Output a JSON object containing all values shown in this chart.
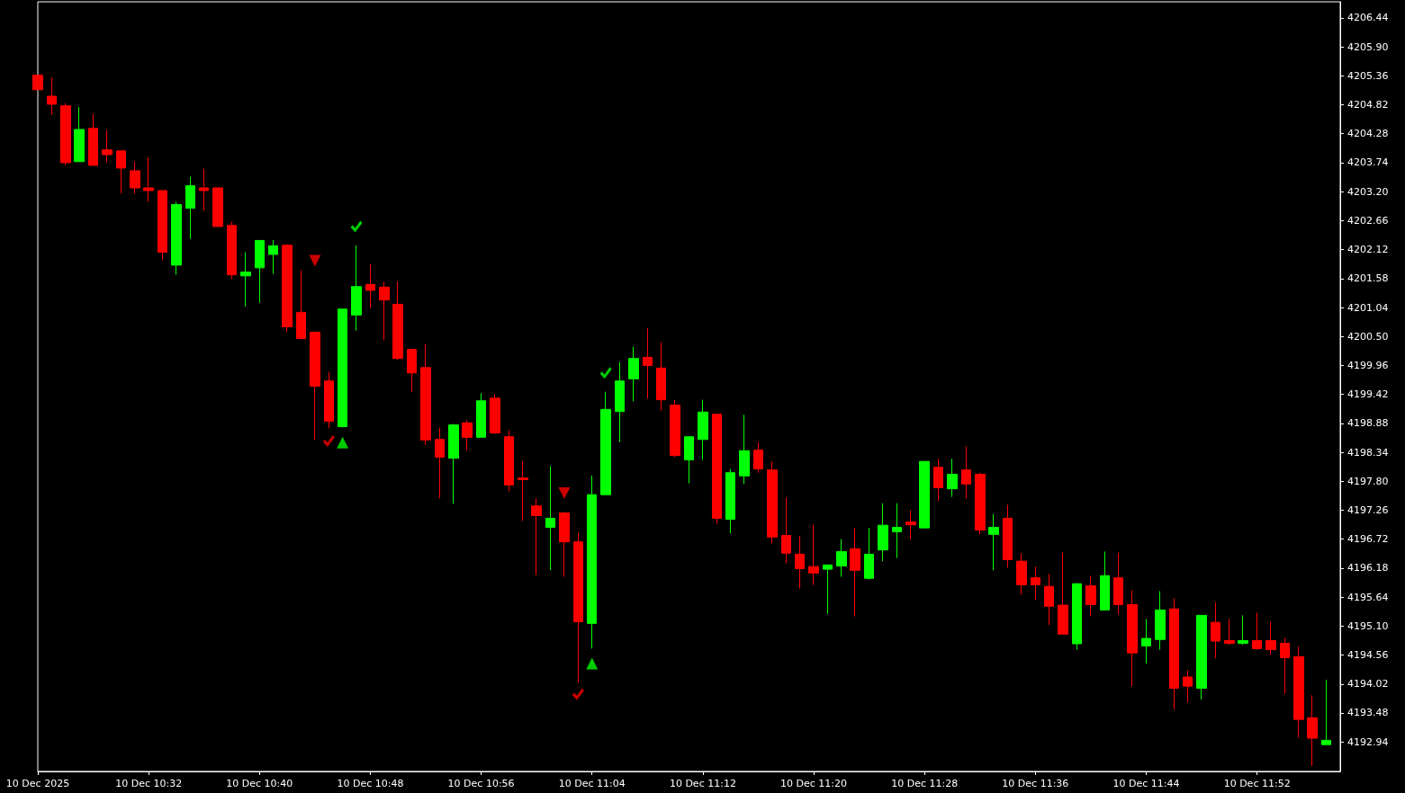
{
  "chart_data": {
    "type": "candlestick",
    "x": [
      "2025-12-10T10:24",
      "2025-12-10T10:25",
      "2025-12-10T10:26",
      "2025-12-10T10:27",
      "2025-12-10T10:28",
      "2025-12-10T10:29",
      "2025-12-10T10:30",
      "2025-12-10T10:31",
      "2025-12-10T10:32",
      "2025-12-10T10:33",
      "2025-12-10T10:34",
      "2025-12-10T10:35",
      "2025-12-10T10:36",
      "2025-12-10T10:37",
      "2025-12-10T10:38",
      "2025-12-10T10:39",
      "2025-12-10T10:40",
      "2025-12-10T10:41",
      "2025-12-10T10:42",
      "2025-12-10T10:43",
      "2025-12-10T10:44",
      "2025-12-10T10:45",
      "2025-12-10T10:46",
      "2025-12-10T10:47",
      "2025-12-10T10:48",
      "2025-12-10T10:49",
      "2025-12-10T10:50",
      "2025-12-10T10:51",
      "2025-12-10T10:52",
      "2025-12-10T10:53",
      "2025-12-10T10:54",
      "2025-12-10T10:55",
      "2025-12-10T10:56",
      "2025-12-10T10:57",
      "2025-12-10T10:58",
      "2025-12-10T10:59",
      "2025-12-10T11:00",
      "2025-12-10T11:01",
      "2025-12-10T11:02",
      "2025-12-10T11:03",
      "2025-12-10T11:04",
      "2025-12-10T11:05",
      "2025-12-10T11:06",
      "2025-12-10T11:07",
      "2025-12-10T11:08",
      "2025-12-10T11:09",
      "2025-12-10T11:10",
      "2025-12-10T11:11",
      "2025-12-10T11:12",
      "2025-12-10T11:13",
      "2025-12-10T11:14",
      "2025-12-10T11:15",
      "2025-12-10T11:16",
      "2025-12-10T11:17",
      "2025-12-10T11:18",
      "2025-12-10T11:19",
      "2025-12-10T11:20",
      "2025-12-10T11:21",
      "2025-12-10T11:22",
      "2025-12-10T11:23",
      "2025-12-10T11:24",
      "2025-12-10T11:25",
      "2025-12-10T11:26",
      "2025-12-10T11:27",
      "2025-12-10T11:28",
      "2025-12-10T11:29",
      "2025-12-10T11:30",
      "2025-12-10T11:31",
      "2025-12-10T11:32",
      "2025-12-10T11:33",
      "2025-12-10T11:34",
      "2025-12-10T11:35",
      "2025-12-10T11:36",
      "2025-12-10T11:37",
      "2025-12-10T11:38",
      "2025-12-10T11:39",
      "2025-12-10T11:40",
      "2025-12-10T11:41",
      "2025-12-10T11:42",
      "2025-12-10T11:43",
      "2025-12-10T11:44",
      "2025-12-10T11:45",
      "2025-12-10T11:46",
      "2025-12-10T11:47",
      "2025-12-10T11:48",
      "2025-12-10T11:49",
      "2025-12-10T11:50",
      "2025-12-10T11:51",
      "2025-12-10T11:52",
      "2025-12-10T11:53",
      "2025-12-10T11:54",
      "2025-12-10T11:55",
      "2025-12-10T11:56",
      "2025-12-10T11:57"
    ],
    "ohlc": [
      [
        4205.37,
        4205.37,
        4205.1,
        4205.1
      ],
      [
        4204.98,
        4205.33,
        4204.63,
        4204.83
      ],
      [
        4204.8,
        4204.85,
        4203.69,
        4203.74
      ],
      [
        4203.76,
        4204.78,
        4203.76,
        4204.36
      ],
      [
        4204.38,
        4204.65,
        4203.69,
        4203.69
      ],
      [
        4203.98,
        4204.35,
        4203.74,
        4203.89
      ],
      [
        4203.96,
        4203.96,
        4203.17,
        4203.64
      ],
      [
        4203.59,
        4203.76,
        4203.16,
        4203.27
      ],
      [
        4203.27,
        4203.84,
        4203.01,
        4203.22
      ],
      [
        4203.22,
        4203.22,
        4201.92,
        4202.07
      ],
      [
        4201.83,
        4203.01,
        4201.65,
        4202.96
      ],
      [
        4202.89,
        4203.48,
        4202.32,
        4203.31
      ],
      [
        4203.27,
        4203.63,
        4202.84,
        4203.22
      ],
      [
        4203.27,
        4203.27,
        4202.55,
        4202.55
      ],
      [
        4202.57,
        4202.64,
        4201.57,
        4201.65
      ],
      [
        4201.63,
        4202.07,
        4201.06,
        4201.7
      ],
      [
        4201.78,
        4202.29,
        4201.13,
        4202.29
      ],
      [
        4202.03,
        4202.3,
        4201.67,
        4202.19
      ],
      [
        4202.2,
        4202.22,
        4200.58,
        4200.68
      ],
      [
        4200.95,
        4201.73,
        4200.46,
        4200.46
      ],
      [
        4200.58,
        4200.58,
        4198.57,
        4199.57
      ],
      [
        4199.67,
        4199.84,
        4198.79,
        4198.92
      ],
      [
        4198.82,
        4201.01,
        4198.8,
        4201.01
      ],
      [
        4200.9,
        4202.2,
        4200.61,
        4201.43
      ],
      [
        4201.47,
        4201.85,
        4201.03,
        4201.36
      ],
      [
        4201.42,
        4201.52,
        4200.43,
        4201.18
      ],
      [
        4201.1,
        4201.53,
        4200.06,
        4200.09
      ],
      [
        4200.26,
        4200.26,
        4199.46,
        4199.82
      ],
      [
        4199.92,
        4200.36,
        4198.48,
        4198.57
      ],
      [
        4198.58,
        4198.8,
        4197.48,
        4198.25
      ],
      [
        4198.23,
        4198.87,
        4197.38,
        4198.85
      ],
      [
        4198.89,
        4198.94,
        4198.37,
        4198.62
      ],
      [
        4198.62,
        4199.44,
        4198.62,
        4199.3
      ],
      [
        4199.35,
        4199.42,
        4198.68,
        4198.7
      ],
      [
        4198.63,
        4198.75,
        4197.61,
        4197.73
      ],
      [
        4197.86,
        4198.17,
        4197.06,
        4197.83
      ],
      [
        4197.34,
        4197.48,
        4196.05,
        4197.16
      ],
      [
        4196.94,
        4198.08,
        4196.14,
        4197.11
      ],
      [
        4197.21,
        4197.23,
        4196.02,
        4196.67
      ],
      [
        4196.67,
        4196.84,
        4194.04,
        4195.18
      ],
      [
        4195.15,
        4197.91,
        4194.68,
        4197.55
      ],
      [
        4197.55,
        4199.47,
        4197.55,
        4199.14
      ],
      [
        4199.1,
        4200.02,
        4198.53,
        4199.67
      ],
      [
        4199.71,
        4200.31,
        4199.29,
        4200.09
      ],
      [
        4200.11,
        4200.66,
        4199.34,
        4199.96
      ],
      [
        4199.91,
        4200.39,
        4199.12,
        4199.32
      ],
      [
        4199.22,
        4199.32,
        4198.25,
        4198.28
      ],
      [
        4198.2,
        4198.63,
        4197.76,
        4198.63
      ],
      [
        4198.58,
        4199.32,
        4198.2,
        4199.09
      ],
      [
        4199.05,
        4199.05,
        4197.01,
        4197.11
      ],
      [
        4197.09,
        4198.03,
        4196.83,
        4197.96
      ],
      [
        4197.9,
        4199.04,
        4197.75,
        4198.37
      ],
      [
        4198.38,
        4198.53,
        4197.96,
        4198.03
      ],
      [
        4198.01,
        4198.17,
        4196.64,
        4196.76
      ],
      [
        4196.79,
        4197.5,
        4196.27,
        4196.46
      ],
      [
        4196.44,
        4196.78,
        4195.8,
        4196.17
      ],
      [
        4196.21,
        4196.99,
        4195.87,
        4196.09
      ],
      [
        4196.16,
        4196.24,
        4195.33,
        4196.24
      ],
      [
        4196.22,
        4196.72,
        4196.02,
        4196.49
      ],
      [
        4196.54,
        4196.93,
        4195.28,
        4196.14
      ],
      [
        4195.99,
        4196.93,
        4195.97,
        4196.44
      ],
      [
        4196.52,
        4197.39,
        4196.31,
        4196.98
      ],
      [
        4196.86,
        4197.39,
        4196.37,
        4196.94
      ],
      [
        4197.04,
        4197.26,
        4196.72,
        4196.99
      ],
      [
        4196.93,
        4198.17,
        4196.93,
        4198.17
      ],
      [
        4198.06,
        4198.22,
        4197.43,
        4197.68
      ],
      [
        4197.66,
        4198.22,
        4197.51,
        4197.93
      ],
      [
        4198.01,
        4198.45,
        4197.48,
        4197.75
      ],
      [
        4197.93,
        4197.96,
        4196.81,
        4196.89
      ],
      [
        4196.81,
        4197.19,
        4196.14,
        4196.94
      ],
      [
        4197.11,
        4197.36,
        4196.19,
        4196.34
      ],
      [
        4196.31,
        4196.46,
        4195.69,
        4195.87
      ],
      [
        4196.0,
        4196.21,
        4195.59,
        4195.87
      ],
      [
        4195.84,
        4196.07,
        4195.12,
        4195.47
      ],
      [
        4195.49,
        4196.47,
        4194.95,
        4194.95
      ],
      [
        4194.77,
        4195.9,
        4194.66,
        4195.89
      ],
      [
        4195.85,
        4196.04,
        4195.28,
        4195.5
      ],
      [
        4195.4,
        4196.49,
        4195.4,
        4196.04
      ],
      [
        4196.0,
        4196.47,
        4195.32,
        4195.5
      ],
      [
        4195.5,
        4195.77,
        4193.98,
        4194.6
      ],
      [
        4194.73,
        4195.23,
        4194.4,
        4194.87
      ],
      [
        4194.85,
        4195.75,
        4194.66,
        4195.4
      ],
      [
        4195.42,
        4195.62,
        4193.54,
        4193.94
      ],
      [
        4194.15,
        4194.28,
        4193.68,
        4193.98
      ],
      [
        4193.94,
        4195.3,
        4193.73,
        4195.3
      ],
      [
        4195.17,
        4195.54,
        4194.5,
        4194.82
      ],
      [
        4194.83,
        4195.23,
        4194.75,
        4194.78
      ],
      [
        4194.78,
        4195.3,
        4194.75,
        4194.83
      ],
      [
        4194.83,
        4195.35,
        4194.66,
        4194.68
      ],
      [
        4194.83,
        4195.18,
        4194.56,
        4194.66
      ],
      [
        4194.78,
        4194.88,
        4193.84,
        4194.51
      ],
      [
        4194.53,
        4194.72,
        4193.02,
        4193.36
      ],
      [
        4193.39,
        4193.81,
        4192.49,
        4193.01
      ],
      [
        4192.89,
        4194.1,
        4192.89,
        4192.97
      ]
    ],
    "colors": [
      "#ff0000",
      "#ff0000",
      "#ff0000",
      "#00ff00",
      "#ff0000",
      "#ff0000",
      "#ff0000",
      "#ff0000",
      "#ff0000",
      "#ff0000",
      "#00ff00",
      "#00ff00",
      "#ff0000",
      "#ff0000",
      "#ff0000",
      "#00ff00",
      "#00ff00",
      "#00ff00",
      "#ff0000",
      "#ff0000",
      "#ff0000",
      "#ff0000",
      "#00ff00",
      "#00ff00",
      "#ff0000",
      "#ff0000",
      "#ff0000",
      "#ff0000",
      "#ff0000",
      "#ff0000",
      "#00ff00",
      "#ff0000",
      "#00ff00",
      "#ff0000",
      "#ff0000",
      "#ff0000",
      "#ff0000",
      "#00ff00",
      "#ff0000",
      "#ff0000",
      "#00ff00",
      "#00ff00",
      "#00ff00",
      "#00ff00",
      "#ff0000",
      "#ff0000",
      "#ff0000",
      "#00ff00",
      "#00ff00",
      "#ff0000",
      "#00ff00",
      "#00ff00",
      "#ff0000",
      "#ff0000",
      "#ff0000",
      "#ff0000",
      "#ff0000",
      "#00ff00",
      "#00ff00",
      "#ff0000",
      "#00ff00",
      "#00ff00",
      "#00ff00",
      "#ff0000",
      "#00ff00",
      "#ff0000",
      "#00ff00",
      "#ff0000",
      "#ff0000",
      "#00ff00",
      "#ff0000",
      "#ff0000",
      "#ff0000",
      "#ff0000",
      "#ff0000",
      "#00ff00",
      "#ff0000",
      "#00ff00",
      "#ff0000",
      "#ff0000",
      "#00ff00",
      "#00ff00",
      "#ff0000",
      "#ff0000",
      "#00ff00",
      "#ff0000",
      "#ff0000",
      "#00ff00",
      "#ff0000",
      "#ff0000",
      "#ff0000",
      "#ff0000",
      "#ff0000",
      "#00ff00"
    ],
    "series": [
      {
        "type": "scatter",
        "color": "#ff0000",
        "marker": "triangle",
        "x": [
          "2025-12-10T10:44",
          "2025-12-10T11:02"
        ],
        "values": [
          4201.91,
          4197.58
        ]
      },
      {
        "type": "scatter",
        "color": "#00ff00",
        "marker": "triangle",
        "x": [
          "2025-12-10T10:46",
          "2025-12-10T11:04"
        ],
        "values": [
          4198.52,
          4194.4
        ]
      },
      {
        "type": "scatter",
        "color": "#ff0000",
        "marker": "cross",
        "x": [
          "2025-12-10T10:45",
          "2025-12-10T11:03"
        ],
        "values": [
          4198.55,
          4193.83
        ]
      },
      {
        "type": "scatter",
        "color": "#00ff00",
        "marker": "cross",
        "x": [
          "2025-12-10T10:47",
          "2025-12-10T11:05"
        ],
        "values": [
          4202.55,
          4199.82
        ]
      }
    ],
    "xlim": [
      "2025-12-10T10:24",
      "2025-12-10T11:58"
    ],
    "xticks": [
      {
        "value": "2025-12-10T10:24",
        "label": "10 Dec 2025"
      },
      {
        "value": "2025-12-10T10:32",
        "label": "10 Dec 10:32"
      },
      {
        "value": "2025-12-10T10:40",
        "label": "10 Dec 10:40"
      },
      {
        "value": "2025-12-10T10:48",
        "label": "10 Dec 10:48"
      },
      {
        "value": "2025-12-10T10:56",
        "label": "10 Dec 10:56"
      },
      {
        "value": "2025-12-10T11:04",
        "label": "10 Dec 11:04"
      },
      {
        "value": "2025-12-10T11:12",
        "label": "10 Dec 11:12"
      },
      {
        "value": "2025-12-10T11:20",
        "label": "10 Dec 11:20"
      },
      {
        "value": "2025-12-10T11:28",
        "label": "10 Dec 11:28"
      },
      {
        "value": "2025-12-10T11:36",
        "label": "10 Dec 11:36"
      },
      {
        "value": "2025-12-10T11:44",
        "label": "10 Dec 11:44"
      },
      {
        "value": "2025-12-10T11:52",
        "label": "10 Dec 11:52"
      }
    ],
    "ylim": [
      4192.39,
      4206.74
    ],
    "yticks": [
      4192.94,
      4193.48,
      4194.02,
      4194.56,
      {
        "value": 4195.1,
        "label": "4195.10"
      },
      4195.64,
      4196.18,
      4196.72,
      4197.26,
      {
        "value": 4197.8,
        "label": "4197.80"
      },
      4198.34,
      4198.88,
      4199.42,
      4199.96,
      {
        "value": 4200.5,
        "label": "4200.50"
      },
      4201.04,
      4201.58,
      4202.12,
      4202.66,
      {
        "value": 4203.2,
        "label": "4203.20"
      },
      4203.74,
      4204.28,
      4204.82,
      4205.36,
      {
        "value": 4205.9,
        "label": "4205.90"
      },
      4206.44
    ],
    "grid": false
  }
}
